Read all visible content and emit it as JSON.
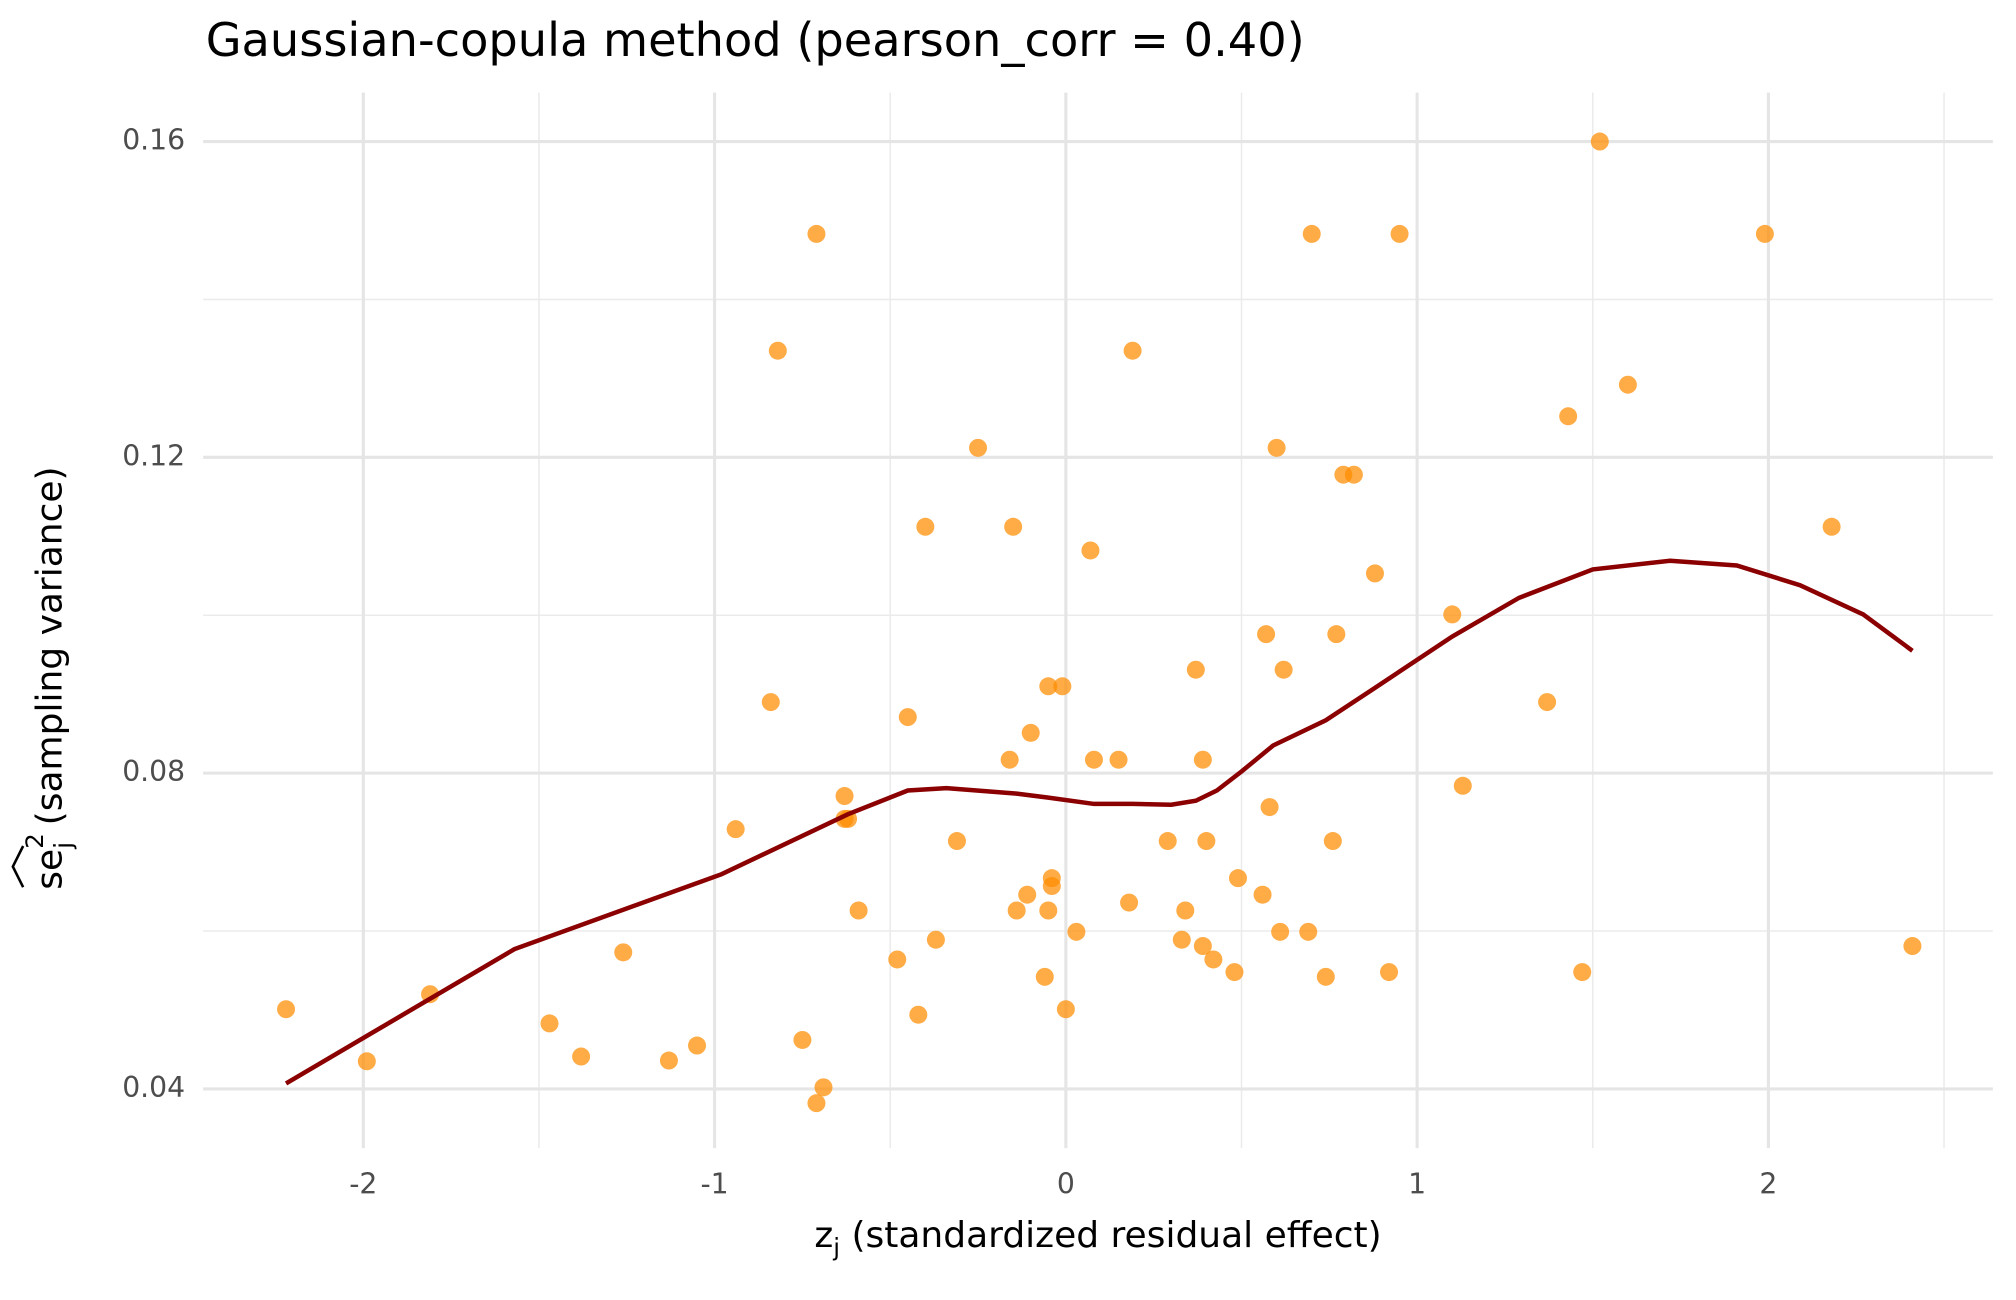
{
  "chart_data": {
    "type": "scatter",
    "title": "Gaussian-copula method (pearson_corr = 0.40)",
    "x_label": {
      "main": "z",
      "sub": "j",
      "rest": " (standardized residual effect)"
    },
    "y_label": {
      "main": "se",
      "sup": "2",
      "sub": "j",
      "rest": " (sampling variance)"
    },
    "xlim": [
      -2.456,
      2.639
    ],
    "ylim": [
      0.0325,
      0.1662
    ],
    "xticks": [
      -2,
      -1,
      0,
      1,
      2
    ],
    "yticks": [
      0.04,
      0.08,
      0.12,
      0.16
    ],
    "x_minor_grid": [
      -1.5,
      -0.5,
      0.5,
      1.5,
      2.5
    ],
    "y_minor_grid": [
      0.06,
      0.1,
      0.14
    ],
    "grid": true,
    "series": [
      {
        "color": "#ff8c00",
        "x": [
          -2.22,
          -1.99,
          -1.81,
          -1.47,
          -1.38,
          -1.26,
          -1.13,
          -1.05,
          -0.94,
          -0.84,
          -0.82,
          -0.75,
          -0.71,
          -0.71,
          -0.69,
          -0.63,
          -0.63,
          -0.62,
          -0.59,
          -0.48,
          -0.45,
          -0.42,
          -0.4,
          -0.37,
          -0.31,
          -0.25,
          -0.16,
          -0.15,
          -0.14,
          -0.11,
          -0.1,
          -0.06,
          -0.05,
          -0.05,
          -0.04,
          -0.04,
          -0.01,
          0,
          0.03,
          0.07,
          0.08,
          0.15,
          0.18,
          0.19,
          0.29,
          0.33,
          0.34,
          0.37,
          0.39,
          0.39,
          0.4,
          0.42,
          0.48,
          0.49,
          0.56,
          0.57,
          0.58,
          0.6,
          0.61,
          0.62,
          0.69,
          0.7,
          0.74,
          0.76,
          0.77,
          0.79,
          0.82,
          0.88,
          0.92,
          0.95,
          1.1,
          1.13,
          1.37,
          1.43,
          1.47,
          1.52,
          1.6,
          1.99,
          2.18,
          2.41
        ],
        "values": [
          0.0501,
          0.0435,
          0.052,
          0.0483,
          0.0441,
          0.0573,
          0.0436,
          0.0455,
          0.0729,
          0.089,
          0.1335,
          0.0462,
          0.0382,
          0.1483,
          0.0402,
          0.0771,
          0.0742,
          0.0742,
          0.0626,
          0.0564,
          0.0871,
          0.0494,
          0.1112,
          0.0589,
          0.0714,
          0.1212,
          0.0817,
          0.1112,
          0.0626,
          0.0646,
          0.0851,
          0.0542,
          0.0626,
          0.091,
          0.0657,
          0.0667,
          0.091,
          0.0501,
          0.0599,
          0.1082,
          0.0817,
          0.0817,
          0.0636,
          0.1335,
          0.0714,
          0.0589,
          0.0626,
          0.0931,
          0.0581,
          0.0817,
          0.0714,
          0.0564,
          0.0548,
          0.0667,
          0.0646,
          0.0976,
          0.0757,
          0.1212,
          0.0599,
          0.0931,
          0.0599,
          0.1483,
          0.0542,
          0.0714,
          0.0976,
          0.1178,
          0.1178,
          0.1053,
          0.0548,
          0.1483,
          0.1001,
          0.0784,
          0.089,
          0.1252,
          0.0548,
          0.16,
          0.1292,
          0.1483,
          0.1112,
          0.0581
        ]
      }
    ],
    "trend": {
      "color": "#8b0000",
      "x": [
        -2.22,
        -1.57,
        -0.98,
        -0.62,
        -0.45,
        -0.34,
        -0.14,
        -0.05,
        0.08,
        0.19,
        0.3,
        0.37,
        0.43,
        0.5,
        0.59,
        0.74,
        0.88,
        1.1,
        1.29,
        1.5,
        1.72,
        1.91,
        2.09,
        2.27,
        2.41
      ],
      "values": [
        0.0407,
        0.0577,
        0.0672,
        0.0748,
        0.0778,
        0.0781,
        0.0774,
        0.0769,
        0.0761,
        0.0761,
        0.076,
        0.0765,
        0.0778,
        0.0802,
        0.0835,
        0.0867,
        0.0908,
        0.0973,
        0.1022,
        0.1058,
        0.1069,
        0.1063,
        0.1038,
        0.1001,
        0.0955
      ]
    }
  }
}
